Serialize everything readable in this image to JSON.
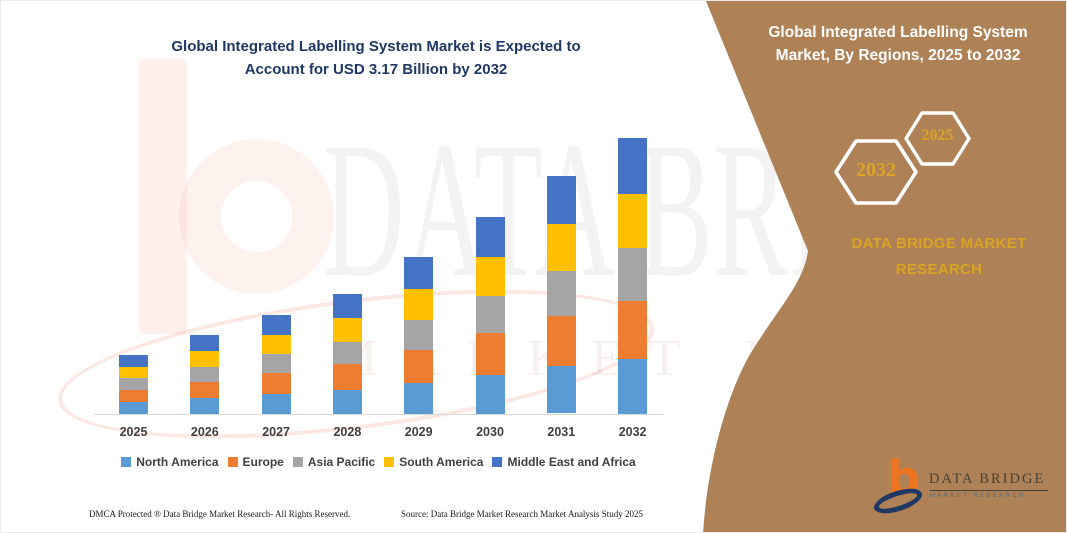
{
  "chart": {
    "title_line1": "Global Integrated Labelling System Market is Expected to",
    "title_line2": "Account for USD 3.17 Billion by 2032"
  },
  "chart_data": {
    "type": "bar",
    "stacked": true,
    "title": "Global Integrated Labelling System Market is Expected to Account for USD 3.17 Billion by 2032",
    "xlabel": "",
    "ylabel": "",
    "unit": "USD Billion",
    "y_axis_visible": false,
    "gridlines": false,
    "legend_position": "bottom",
    "ylim": [
      0,
      3.4
    ],
    "categories": [
      "2025",
      "2026",
      "2027",
      "2028",
      "2029",
      "2030",
      "2031",
      "2032"
    ],
    "series": [
      {
        "name": "North America",
        "color": "#5B9BD5",
        "values": [
          0.14,
          0.18,
          0.23,
          0.28,
          0.36,
          0.45,
          0.55,
          0.63
        ]
      },
      {
        "name": "Europe",
        "color": "#ED7D31",
        "values": [
          0.14,
          0.19,
          0.24,
          0.29,
          0.38,
          0.48,
          0.57,
          0.67
        ]
      },
      {
        "name": "Asia Pacific",
        "color": "#A5A5A5",
        "values": [
          0.13,
          0.17,
          0.22,
          0.26,
          0.34,
          0.43,
          0.52,
          0.6
        ]
      },
      {
        "name": "South America",
        "color": "#FFC000",
        "values": [
          0.13,
          0.18,
          0.22,
          0.27,
          0.36,
          0.45,
          0.54,
          0.63
        ]
      },
      {
        "name": "Middle East and Africa",
        "color": "#4472C4",
        "values": [
          0.14,
          0.19,
          0.23,
          0.28,
          0.37,
          0.46,
          0.55,
          0.64
        ]
      }
    ],
    "totals": [
      0.68,
      0.91,
      1.14,
      1.38,
      1.81,
      2.27,
      2.73,
      3.17
    ],
    "annotations": [
      "USD 3.17 Billion by 2032"
    ]
  },
  "side_panel": {
    "background_color": "#AE8156",
    "title_line1": "Global Integrated Labelling System",
    "title_line2": "Market, By Regions, 2025 to 2032",
    "hex_year_large": "2032",
    "hex_year_small": "2025",
    "brand_line1": "DATA BRIDGE MARKET",
    "brand_line2": "RESEARCH",
    "accent_color": "#D9A422"
  },
  "watermark": {
    "brand": "DATA BRIDGE",
    "sub": "MARKET RESEARCH"
  },
  "footer": {
    "dmca": "DMCA Protected ® Data Bridge Market Research-  All Rights Reserved.",
    "source": "Source: Data Bridge Market Research  Market Analysis Study 2025"
  },
  "logo": {
    "wordmark": "DATA BRIDGE",
    "tagline": "MARKET RESEARCH",
    "b_glyph": "b",
    "orange": "#EE7623",
    "navy": "#1F3864"
  }
}
